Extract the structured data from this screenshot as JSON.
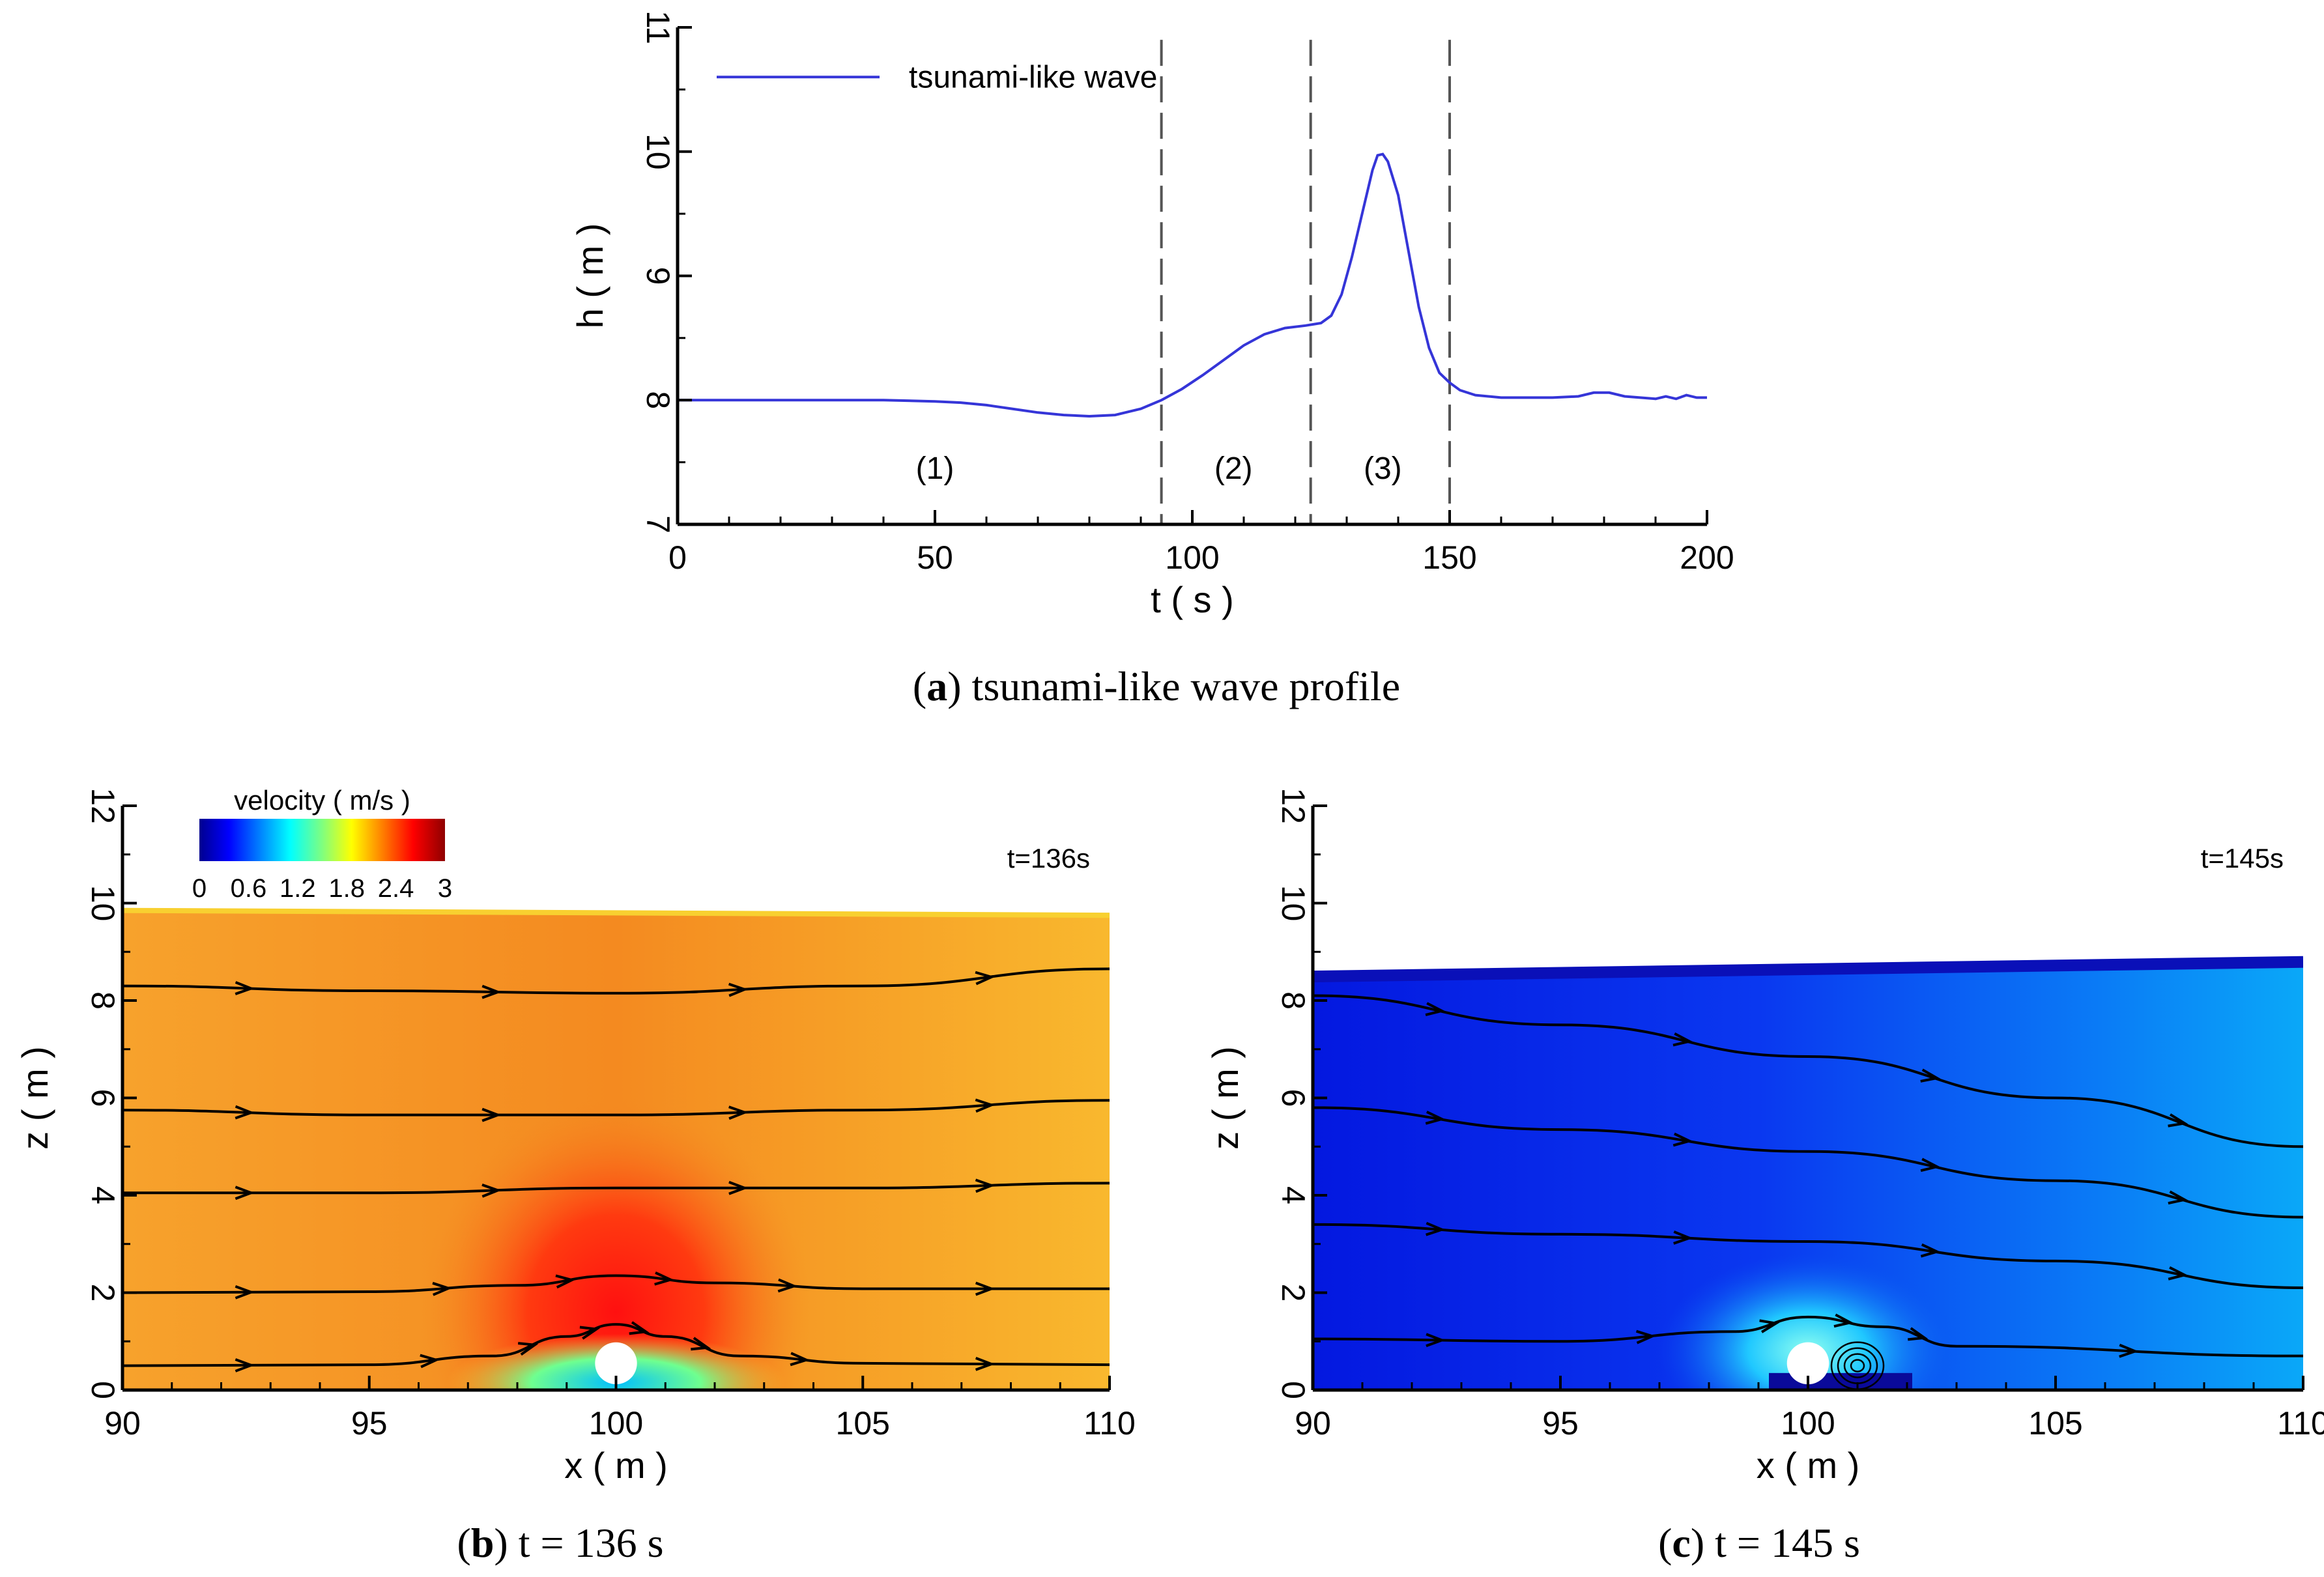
{
  "colors": {
    "line": "#3535d8",
    "axis": "#000000",
    "divider": "#555555",
    "streamline": "#000000",
    "cylinder": "#ffffff"
  },
  "captions": {
    "a": {
      "letter": "a",
      "rest": " tsunami-like wave profile"
    },
    "b": {
      "letter": "b",
      "rest": " t = 136 s"
    },
    "c": {
      "letter": "c",
      "rest": " t = 145 s"
    }
  },
  "chart_data": [
    {
      "id": "a",
      "type": "line",
      "title": "",
      "xlabel": "t ( s )",
      "ylabel": "h ( m )",
      "xlim": [
        0,
        200
      ],
      "ylim": [
        7,
        11
      ],
      "xticks": [
        0,
        50,
        100,
        150,
        200
      ],
      "yticks": [
        7,
        8,
        9,
        10,
        11
      ],
      "legend": {
        "label": "tsunami-like wave",
        "position": "top-left"
      },
      "dividers_t": [
        94,
        123,
        150
      ],
      "phase_labels": [
        {
          "text": "(1)",
          "t": 50,
          "h": 7.45
        },
        {
          "text": "(2)",
          "t": 108,
          "h": 7.45
        },
        {
          "text": "(3)",
          "t": 137,
          "h": 7.45
        }
      ],
      "series": [
        {
          "name": "tsunami-like wave",
          "x": [
            0,
            10,
            20,
            30,
            40,
            50,
            55,
            60,
            65,
            70,
            75,
            80,
            85,
            90,
            94,
            98,
            102,
            106,
            110,
            114,
            118,
            122,
            125,
            127,
            129,
            131,
            133,
            135,
            136,
            137,
            138,
            140,
            142,
            144,
            146,
            148,
            150,
            152,
            155,
            160,
            165,
            170,
            175,
            178,
            181,
            184,
            187,
            190,
            192,
            194,
            196,
            198,
            200
          ],
          "y": [
            8.0,
            8.0,
            8.0,
            8.0,
            8.0,
            7.99,
            7.98,
            7.96,
            7.93,
            7.9,
            7.88,
            7.87,
            7.88,
            7.93,
            8.0,
            8.09,
            8.2,
            8.32,
            8.44,
            8.53,
            8.58,
            8.6,
            8.62,
            8.68,
            8.85,
            9.15,
            9.5,
            9.85,
            9.97,
            9.98,
            9.92,
            9.65,
            9.2,
            8.75,
            8.42,
            8.22,
            8.14,
            8.08,
            8.04,
            8.02,
            8.02,
            8.02,
            8.03,
            8.06,
            8.06,
            8.03,
            8.02,
            8.01,
            8.03,
            8.01,
            8.04,
            8.02,
            8.02
          ]
        }
      ]
    },
    {
      "id": "b",
      "type": "heatmap",
      "title": "t=136s",
      "xlabel": "x ( m )",
      "ylabel": "z ( m )",
      "xlim": [
        90,
        110
      ],
      "ylim": [
        0,
        12
      ],
      "xticks": [
        90,
        95,
        100,
        105,
        110
      ],
      "yticks": [
        0,
        2,
        4,
        6,
        8,
        10,
        12
      ],
      "colorbar": {
        "title": "velocity ( m/s )",
        "min": 0,
        "max": 3,
        "ticks": [
          "0",
          "0.6",
          "1.2",
          "1.8",
          "2.4",
          "3"
        ]
      },
      "free_surface": [
        [
          90,
          9.85
        ],
        [
          100,
          9.8
        ],
        [
          110,
          9.75
        ]
      ],
      "background_velocity": 2.4,
      "cylinder": {
        "x": 100,
        "z": 0.55,
        "r": 0.5
      },
      "streamlines": [
        [
          [
            90,
            8.3
          ],
          [
            95,
            8.2
          ],
          [
            100,
            8.15
          ],
          [
            105,
            8.3
          ],
          [
            110,
            8.65
          ]
        ],
        [
          [
            90,
            5.75
          ],
          [
            95,
            5.65
          ],
          [
            100,
            5.65
          ],
          [
            105,
            5.75
          ],
          [
            110,
            5.95
          ]
        ],
        [
          [
            90,
            4.05
          ],
          [
            95,
            4.05
          ],
          [
            100,
            4.15
          ],
          [
            105,
            4.15
          ],
          [
            110,
            4.25
          ]
        ],
        [
          [
            90,
            2.0
          ],
          [
            95,
            2.02
          ],
          [
            98,
            2.15
          ],
          [
            100,
            2.35
          ],
          [
            102,
            2.2
          ],
          [
            105,
            2.08
          ],
          [
            110,
            2.08
          ]
        ],
        [
          [
            90,
            0.5
          ],
          [
            95,
            0.52
          ],
          [
            97.5,
            0.7
          ],
          [
            99,
            1.1
          ],
          [
            100,
            1.35
          ],
          [
            101,
            1.1
          ],
          [
            102.5,
            0.7
          ],
          [
            105,
            0.55
          ],
          [
            110,
            0.52
          ]
        ]
      ]
    },
    {
      "id": "c",
      "type": "heatmap",
      "title": "t=145s",
      "xlabel": "x ( m )",
      "ylabel": "z ( m )",
      "xlim": [
        90,
        110
      ],
      "ylim": [
        0,
        12
      ],
      "xticks": [
        90,
        95,
        100,
        105,
        110
      ],
      "yticks": [
        0,
        2,
        4,
        6,
        8,
        10,
        12
      ],
      "free_surface": [
        [
          90,
          8.6
        ],
        [
          100,
          8.75
        ],
        [
          110,
          8.9
        ]
      ],
      "background_velocity": 0.45,
      "cylinder": {
        "x": 100,
        "z": 0.55,
        "r": 0.5
      },
      "streamlines": [
        [
          [
            90,
            8.1
          ],
          [
            95,
            7.5
          ],
          [
            100,
            6.85
          ],
          [
            105,
            6.0
          ],
          [
            110,
            5.0
          ]
        ],
        [
          [
            90,
            5.8
          ],
          [
            95,
            5.35
          ],
          [
            100,
            4.9
          ],
          [
            105,
            4.3
          ],
          [
            110,
            3.55
          ]
        ],
        [
          [
            90,
            3.4
          ],
          [
            95,
            3.2
          ],
          [
            100,
            3.05
          ],
          [
            105,
            2.65
          ],
          [
            110,
            2.1
          ]
        ],
        [
          [
            90,
            1.05
          ],
          [
            95,
            1.0
          ],
          [
            98.5,
            1.2
          ],
          [
            100,
            1.5
          ],
          [
            101.5,
            1.3
          ],
          [
            103,
            0.9
          ],
          [
            110,
            0.7
          ]
        ]
      ]
    }
  ]
}
